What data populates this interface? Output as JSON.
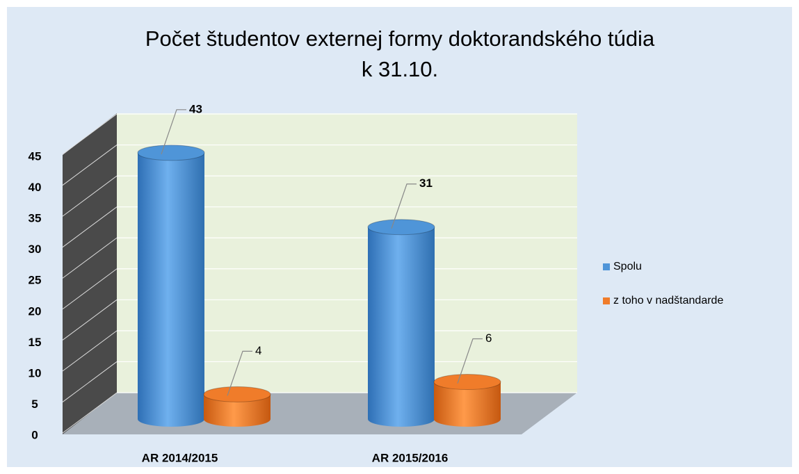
{
  "chart_data": {
    "type": "bar3d",
    "title": [
      "Počet študentov externej formy doktorandského túdia",
      "k 31.10."
    ],
    "categories": [
      "AR 2014/2015",
      "AR 2015/2016"
    ],
    "series": [
      {
        "name": "Spolu",
        "color": "#4f95d8",
        "values": [
          43,
          31
        ]
      },
      {
        "name": "z toho v nadštandarde",
        "color": "#f07c2a",
        "values": [
          4,
          6
        ]
      }
    ],
    "ylim": [
      0,
      45
    ],
    "yticks": [
      0,
      5,
      10,
      15,
      20,
      25,
      30,
      35,
      40,
      45
    ],
    "grid": true,
    "legend": "right"
  }
}
